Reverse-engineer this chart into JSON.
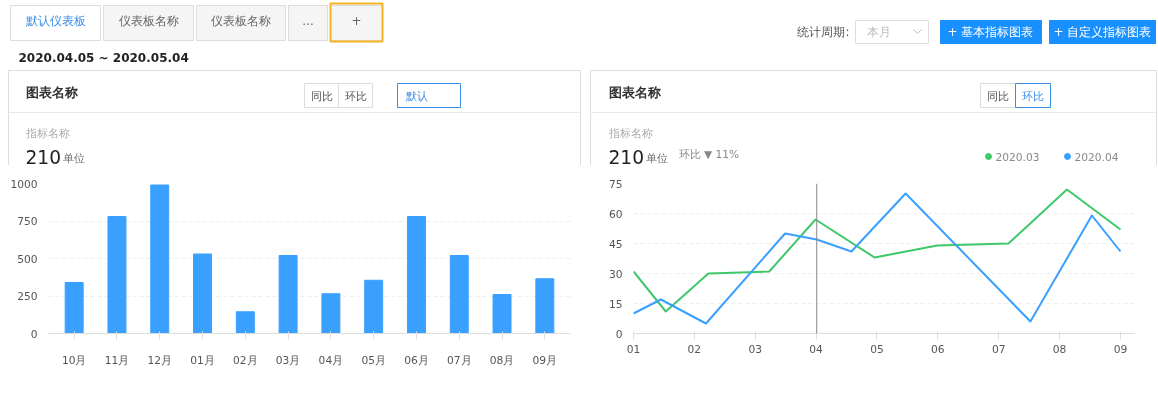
{
  "chart_data": [
    {
      "type": "other",
      "annotations": [
        "默认仪表板",
        "仪表板名称",
        "仪表板名称",
        "...",
        "+",
        "统计周期:",
        "本月",
        "+ 基本指标图表",
        "+ 自定义指标图表",
        "2020.04.05 ~ 2020.05.04"
      ]
    },
    {
      "type": "bar",
      "title": "图表名称",
      "annotations": [
        "同比",
        "环比",
        "默认",
        "指标名称",
        "210",
        "单位"
      ],
      "categories": [
        "10月",
        "11月",
        "12月",
        "01月",
        "02月",
        "03月",
        "04月",
        "05月",
        "06月",
        "07月",
        "08月",
        "09月"
      ],
      "values": [
        340,
        780,
        990,
        530,
        145,
        520,
        265,
        355,
        780,
        520,
        260,
        365
      ],
      "color": "#3aa0ff",
      "ylim": [
        0,
        1000
      ],
      "yticks": [
        0,
        250,
        500,
        750,
        1000
      ],
      "grid": "y"
    },
    {
      "type": "line",
      "title": "图表名称",
      "annotations": [
        "同比",
        "环比",
        "指标名称",
        "210",
        "单位",
        "环比 ▼ 11%"
      ],
      "series": [
        {
          "name": "2020.03",
          "color": "#3fc86a",
          "x": [
            1.0,
            1.53,
            2.23,
            3.23,
            3.99,
            4.96,
            5.99,
            7.16,
            8.12,
            9.0
          ],
          "values": [
            31,
            11,
            30,
            31,
            57,
            38,
            44,
            45,
            72,
            52
          ]
        },
        {
          "name": "2020.04",
          "color": "#3aa0ff",
          "x": [
            1.0,
            1.45,
            2.19,
            3.49,
            4.01,
            4.58,
            5.47,
            7.52,
            8.53,
            9.0
          ],
          "values": [
            10,
            17,
            5,
            50,
            47,
            41,
            70,
            6,
            59,
            41
          ]
        }
      ],
      "xlim": [
        1,
        9.23
      ],
      "xticks": [
        {
          "value": 1,
          "label": "01"
        },
        {
          "value": 2,
          "label": "02"
        },
        {
          "value": 3,
          "label": "03"
        },
        {
          "value": 4,
          "label": "04"
        },
        {
          "value": 5,
          "label": "05"
        },
        {
          "value": 6,
          "label": "06"
        },
        {
          "value": 7,
          "label": "07"
        },
        {
          "value": 8,
          "label": "08"
        },
        {
          "value": 9,
          "label": "09"
        }
      ],
      "ylim": [
        0,
        75
      ],
      "yticks": [
        0,
        15,
        30,
        45,
        60,
        75
      ],
      "grid": "y",
      "legend": "top right",
      "ref_lines": [
        {
          "axis": "x",
          "value": 4.01,
          "color": "#888888"
        }
      ]
    }
  ]
}
